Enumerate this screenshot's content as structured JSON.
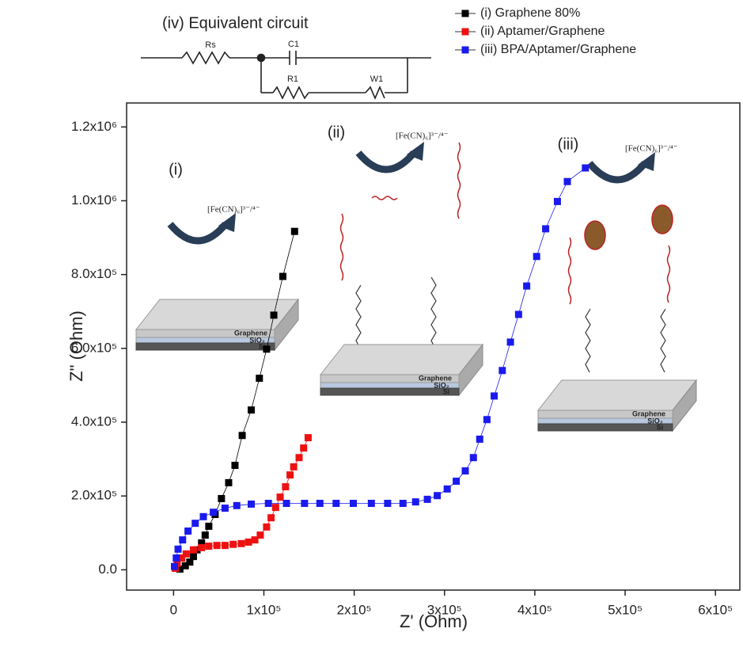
{
  "chart_data": {
    "type": "scatter",
    "circuit_title": "(iv)  Equivalent circuit",
    "circuit_labels": [
      "Rs",
      "C1",
      "R1",
      "W1"
    ],
    "x_label": "Z' (Ohm)",
    "y_label": "Z\" (Ohm)",
    "xlim": [
      -52000,
      627000
    ],
    "ylim": [
      -55000,
      1265000
    ],
    "xticks": [
      0,
      {
        "value": 100000,
        "label": "1x10⁵"
      },
      {
        "value": 200000,
        "label": "2x10⁵"
      },
      {
        "value": 300000,
        "label": "3x10⁵"
      },
      {
        "value": 400000,
        "label": "4x10⁵"
      },
      {
        "value": 500000,
        "label": "5x10⁵"
      },
      {
        "value": 600000,
        "label": "6x10⁵"
      }
    ],
    "yticks": [
      {
        "value": 0,
        "label": "0.0"
      },
      {
        "value": 200000,
        "label": "2.0x10⁵"
      },
      {
        "value": 400000,
        "label": "4.0x10⁵"
      },
      {
        "value": 600000,
        "label": "6.0x10⁵"
      },
      {
        "value": 800000,
        "label": "8.0x10⁵"
      },
      {
        "value": 1000000,
        "label": "1.0x10⁶"
      },
      {
        "value": 1200000,
        "label": "1.2x10⁶"
      }
    ],
    "legend": "upper right",
    "series": [
      {
        "name": "(i) Graphene 80%",
        "color": "#000000",
        "x": [
          7000,
          13000,
          18000,
          22000,
          26000,
          31000,
          35000,
          39000,
          46000,
          53000,
          61000,
          68000,
          76000,
          86000,
          95000,
          103000,
          111000,
          121000,
          134000
        ],
        "values": [
          2000,
          11000,
          21000,
          36000,
          54000,
          73000,
          94000,
          118000,
          150000,
          193000,
          236000,
          283000,
          364000,
          433000,
          519000,
          598000,
          690000,
          795000,
          917000
        ]
      },
      {
        "name": "(ii) Aptamer/Graphene",
        "color": "#ee1111",
        "x": [
          2000,
          4000,
          9000,
          14000,
          22000,
          31000,
          39000,
          48000,
          57000,
          66000,
          75000,
          83000,
          90000,
          96000,
          103000,
          108000,
          113000,
          118000,
          124000,
          129000,
          133000,
          139000,
          144000,
          149000
        ],
        "values": [
          4000,
          17000,
          32000,
          43000,
          54000,
          60000,
          64000,
          66000,
          66000,
          69000,
          71000,
          75000,
          81000,
          94000,
          116000,
          141000,
          169000,
          197000,
          225000,
          257000,
          279000,
          304000,
          330000,
          358000
        ]
      },
      {
        "name": "(iii) BPA/Aptamer/Graphene",
        "color": "#1a1aee",
        "x": [
          1000,
          3000,
          5000,
          10000,
          16000,
          24000,
          33000,
          44000,
          57000,
          70000,
          86000,
          105000,
          125000,
          145000,
          162000,
          180000,
          199000,
          219000,
          237000,
          254000,
          268000,
          281000,
          292000,
          303000,
          313000,
          323000,
          332000,
          339000,
          347000,
          355000,
          364000,
          373000,
          382000,
          391000,
          402000,
          412000,
          425000,
          436000,
          456000
        ],
        "values": [
          9000,
          32000,
          56000,
          81000,
          105000,
          126000,
          144000,
          156000,
          167000,
          174000,
          178000,
          180000,
          180000,
          180000,
          180000,
          180000,
          180000,
          180000,
          180000,
          180000,
          184000,
          191000,
          201000,
          219000,
          240000,
          268000,
          304000,
          354000,
          407000,
          471000,
          540000,
          617000,
          692000,
          769000,
          849000,
          924000,
          998000,
          1052000,
          1089000
        ]
      }
    ],
    "panels": [
      {
        "label": "(i)",
        "ion": "[Fe(CN)₆]³⁻/⁴⁻",
        "layers": [
          "Graphene",
          "SiO₂",
          "Si"
        ]
      },
      {
        "label": "(ii)",
        "ion": "[Fe(CN)₆]³⁻/⁴⁻",
        "layers": [
          "Graphene",
          "SiO₂",
          "Si"
        ]
      },
      {
        "label": "(iii)",
        "ion": "[Fe(CN)₆]³⁻/⁴⁻",
        "layers": [
          "Graphene",
          "SiO₂",
          "Si"
        ]
      }
    ]
  }
}
